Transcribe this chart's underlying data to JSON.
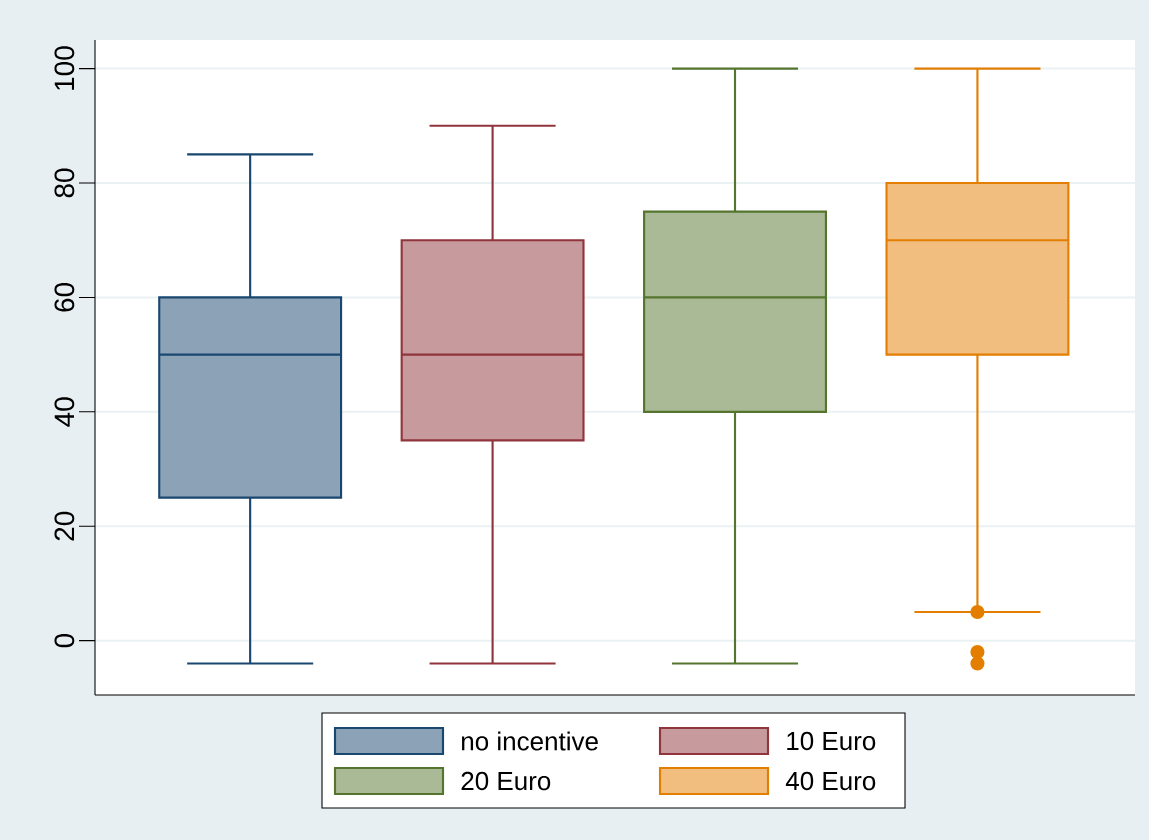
{
  "chart_data": {
    "type": "box",
    "categories": [
      null
    ],
    "series": [
      {
        "name": "no incentive",
        "color": "#1a476f",
        "boxes": [
          {
            "low": -4,
            "q1": 25,
            "median": 50,
            "q3": 60,
            "high": 85
          }
        ]
      },
      {
        "name": "10 Euro",
        "color": "#90353b",
        "boxes": [
          {
            "low": -4,
            "q1": 35,
            "median": 50,
            "q3": 70,
            "high": 90
          }
        ]
      },
      {
        "name": "20 Euro",
        "color": "#55752f",
        "boxes": [
          {
            "low": -4,
            "q1": 40,
            "median": 60,
            "q3": 75,
            "high": 100
          }
        ]
      },
      {
        "name": "40 Euro",
        "color": "#e37e00",
        "boxes": [
          {
            "low": 5,
            "q1": 50,
            "median": 70,
            "q3": 80,
            "high": 100,
            "outliers": [
              5,
              -2,
              -4
            ]
          }
        ]
      }
    ],
    "ylim": [
      -9.5,
      105
    ],
    "yticks": [
      0,
      20,
      40,
      60,
      80,
      100
    ],
    "grid": "y",
    "legend": "bottom"
  }
}
